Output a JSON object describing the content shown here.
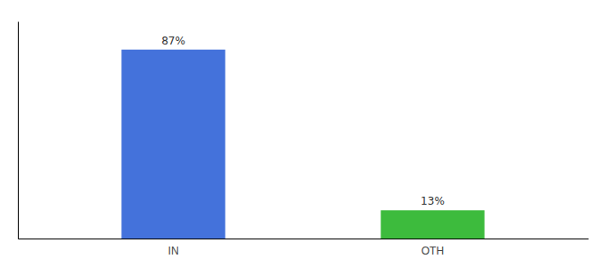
{
  "chart_data": {
    "type": "bar",
    "categories": [
      "IN",
      "OTH"
    ],
    "values": [
      87,
      13
    ],
    "colors": [
      "#4472db",
      "#3dbb3d"
    ],
    "value_labels": [
      "87%",
      "13%"
    ],
    "data_labels": true,
    "ylim": [
      0,
      100
    ],
    "tick_labels": "x"
  }
}
